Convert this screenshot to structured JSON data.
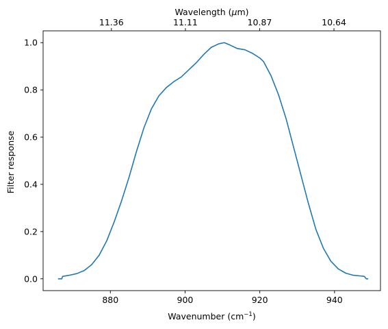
{
  "chart_data": {
    "type": "line",
    "title": "",
    "xlabel": "Wavenumber (cm",
    "xlabel_sup": "−1",
    "xlabel_close": ")",
    "ylabel": "Filter response",
    "top_xlabel": "Wavelength (",
    "top_xlabel_mu": "μ",
    "top_xlabel_unit": "m)",
    "xlim": [
      862.0,
      952.3
    ],
    "ylim": [
      -0.05,
      1.05
    ],
    "x_ticks": [
      880,
      900,
      920,
      940
    ],
    "x_tick_labels": [
      "880",
      "900",
      "920",
      "940"
    ],
    "y_ticks": [
      0.0,
      0.2,
      0.4,
      0.6,
      0.8,
      1.0
    ],
    "y_tick_labels": [
      "0.0",
      "0.2",
      "0.4",
      "0.6",
      "0.8",
      "1.0"
    ],
    "top_ticks": [
      11.36,
      11.11,
      10.87,
      10.64
    ],
    "top_tick_labels": [
      "11.36",
      "11.11",
      "10.87",
      "10.64"
    ],
    "grid": false,
    "series": [
      {
        "color": "#1f77b4",
        "points": [
          [
            866.0,
            0.0
          ],
          [
            867.0,
            0.0
          ],
          [
            867.2,
            0.01
          ],
          [
            869.0,
            0.015
          ],
          [
            871.0,
            0.022
          ],
          [
            873.0,
            0.035
          ],
          [
            875.0,
            0.06
          ],
          [
            877.0,
            0.1
          ],
          [
            879.0,
            0.16
          ],
          [
            881.0,
            0.24
          ],
          [
            883.0,
            0.33
          ],
          [
            885.0,
            0.43
          ],
          [
            887.0,
            0.54
          ],
          [
            889.0,
            0.64
          ],
          [
            891.0,
            0.72
          ],
          [
            893.0,
            0.775
          ],
          [
            895.0,
            0.81
          ],
          [
            897.0,
            0.835
          ],
          [
            899.0,
            0.855
          ],
          [
            901.0,
            0.885
          ],
          [
            903.0,
            0.915
          ],
          [
            905.0,
            0.95
          ],
          [
            907.0,
            0.98
          ],
          [
            909.0,
            0.995
          ],
          [
            910.5,
            1.0
          ],
          [
            912.0,
            0.99
          ],
          [
            914.0,
            0.975
          ],
          [
            916.0,
            0.97
          ],
          [
            918.0,
            0.955
          ],
          [
            920.0,
            0.935
          ],
          [
            921.0,
            0.92
          ],
          [
            923.0,
            0.86
          ],
          [
            925.0,
            0.78
          ],
          [
            927.0,
            0.68
          ],
          [
            929.0,
            0.56
          ],
          [
            931.0,
            0.44
          ],
          [
            933.0,
            0.32
          ],
          [
            935.0,
            0.21
          ],
          [
            937.0,
            0.13
          ],
          [
            939.0,
            0.075
          ],
          [
            941.0,
            0.042
          ],
          [
            943.0,
            0.024
          ],
          [
            945.0,
            0.015
          ],
          [
            947.0,
            0.012
          ],
          [
            948.0,
            0.01
          ],
          [
            948.5,
            0.0
          ],
          [
            949.0,
            0.0
          ]
        ]
      }
    ]
  }
}
